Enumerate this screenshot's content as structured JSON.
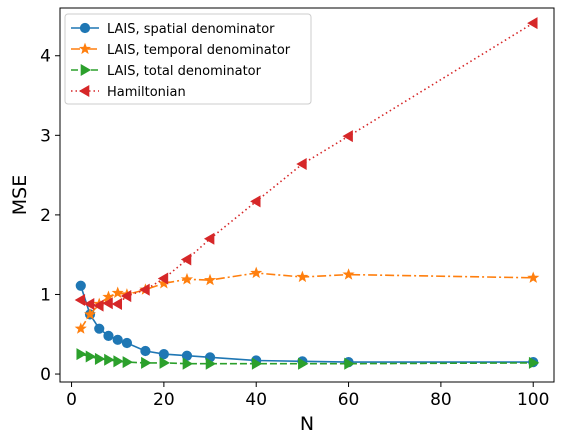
{
  "chart_data": {
    "type": "line",
    "xlabel": "N",
    "ylabel": "MSE",
    "xlim": [
      -2.5,
      104.5
    ],
    "ylim": [
      -0.1,
      4.6
    ],
    "xticks": [
      0,
      20,
      40,
      60,
      80,
      100
    ],
    "yticks": [
      0,
      1,
      2,
      3,
      4
    ],
    "grid": false,
    "legend_position": "top-left",
    "series": [
      {
        "name": "LAIS, spatial denominator",
        "color": "#1f77b4",
        "linestyle": "solid",
        "marker": "circle",
        "x": [
          2,
          4,
          6,
          8,
          10,
          12,
          16,
          20,
          25,
          30,
          40,
          50,
          60,
          100
        ],
        "y": [
          1.11,
          0.75,
          0.57,
          0.48,
          0.43,
          0.39,
          0.29,
          0.25,
          0.23,
          0.21,
          0.17,
          0.16,
          0.15,
          0.15
        ]
      },
      {
        "name": "LAIS, temporal denominator",
        "color": "#ff7f0e",
        "linestyle": "dashdot",
        "marker": "star",
        "x": [
          2,
          4,
          6,
          8,
          10,
          12,
          16,
          20,
          25,
          30,
          40,
          50,
          60,
          100
        ],
        "y": [
          0.57,
          0.75,
          0.88,
          0.97,
          1.02,
          1.0,
          1.06,
          1.14,
          1.19,
          1.18,
          1.27,
          1.22,
          1.25,
          1.21
        ]
      },
      {
        "name": "LAIS, total denominator",
        "color": "#2ca02c",
        "linestyle": "dashed",
        "marker": "triangle-right",
        "x": [
          2,
          4,
          6,
          8,
          10,
          12,
          16,
          20,
          25,
          30,
          40,
          50,
          60,
          100
        ],
        "y": [
          0.25,
          0.22,
          0.19,
          0.18,
          0.16,
          0.15,
          0.14,
          0.14,
          0.13,
          0.13,
          0.13,
          0.13,
          0.13,
          0.14
        ]
      },
      {
        "name": "Hamiltonian",
        "color": "#d62728",
        "linestyle": "dotted",
        "marker": "triangle-left",
        "x": [
          2,
          4,
          6,
          8,
          10,
          12,
          16,
          20,
          25,
          30,
          40,
          50,
          60,
          100
        ],
        "y": [
          0.93,
          0.88,
          0.86,
          0.89,
          0.88,
          0.98,
          1.06,
          1.2,
          1.44,
          1.7,
          2.17,
          2.64,
          2.99,
          4.41
        ]
      }
    ]
  }
}
